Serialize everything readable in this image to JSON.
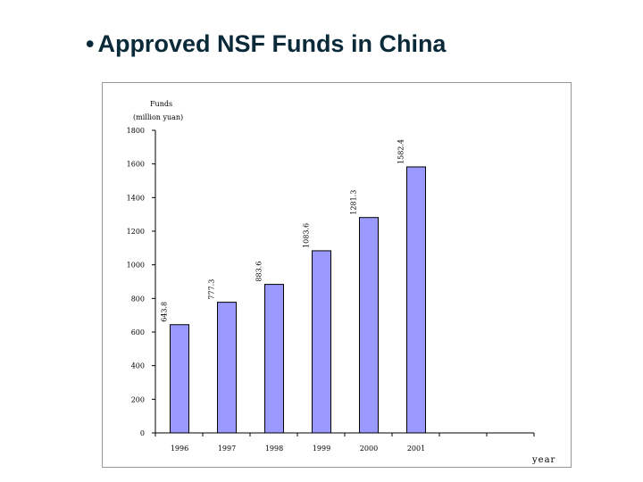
{
  "slide": {
    "bullet": "•",
    "title": "Approved NSF Funds in China"
  },
  "chart_data": {
    "type": "bar",
    "categories": [
      "1996",
      "1997",
      "1998",
      "1999",
      "2000",
      "2001"
    ],
    "values": [
      643.8,
      777.3,
      883.6,
      1083.6,
      1281.3,
      1582.4
    ],
    "data_labels": [
      "643.8",
      "777.3",
      "883.6",
      "1083.6",
      "1281.3",
      "1582.4"
    ],
    "ylabel_line1": "Funds",
    "ylabel_line2": "(million yuan)",
    "xlabel": "year",
    "ylim": [
      0,
      1800
    ],
    "yticks": [
      0,
      200,
      400,
      600,
      800,
      1000,
      1200,
      1400,
      1600,
      1800
    ],
    "grid": false,
    "bar_color": "#9999ff",
    "bar_border": "#000000"
  }
}
